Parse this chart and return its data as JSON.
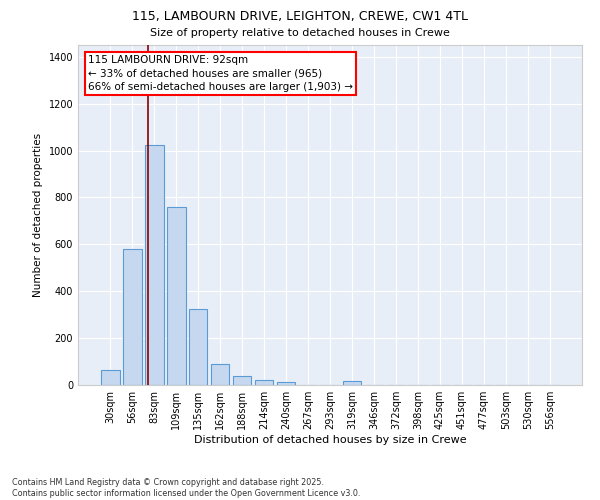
{
  "title1": "115, LAMBOURN DRIVE, LEIGHTON, CREWE, CW1 4TL",
  "title2": "Size of property relative to detached houses in Crewe",
  "xlabel": "Distribution of detached houses by size in Crewe",
  "ylabel": "Number of detached properties",
  "categories": [
    "30sqm",
    "56sqm",
    "83sqm",
    "109sqm",
    "135sqm",
    "162sqm",
    "188sqm",
    "214sqm",
    "240sqm",
    "267sqm",
    "293sqm",
    "319sqm",
    "346sqm",
    "372sqm",
    "398sqm",
    "425sqm",
    "451sqm",
    "477sqm",
    "503sqm",
    "530sqm",
    "556sqm"
  ],
  "values": [
    65,
    578,
    1022,
    760,
    325,
    90,
    38,
    22,
    14,
    0,
    0,
    18,
    0,
    0,
    0,
    0,
    0,
    0,
    0,
    0,
    0
  ],
  "bar_color": "#c5d8ef",
  "bar_edge_color": "#5b9bd5",
  "bg_color": "#e8eef7",
  "grid_color": "#ffffff",
  "vline_color": "#8b0000",
  "annotation_text": "115 LAMBOURN DRIVE: 92sqm\n← 33% of detached houses are smaller (965)\n66% of semi-detached houses are larger (1,903) →",
  "ylim": [
    0,
    1450
  ],
  "yticks": [
    0,
    200,
    400,
    600,
    800,
    1000,
    1200,
    1400
  ],
  "footer": "Contains HM Land Registry data © Crown copyright and database right 2025.\nContains public sector information licensed under the Open Government Licence v3.0."
}
